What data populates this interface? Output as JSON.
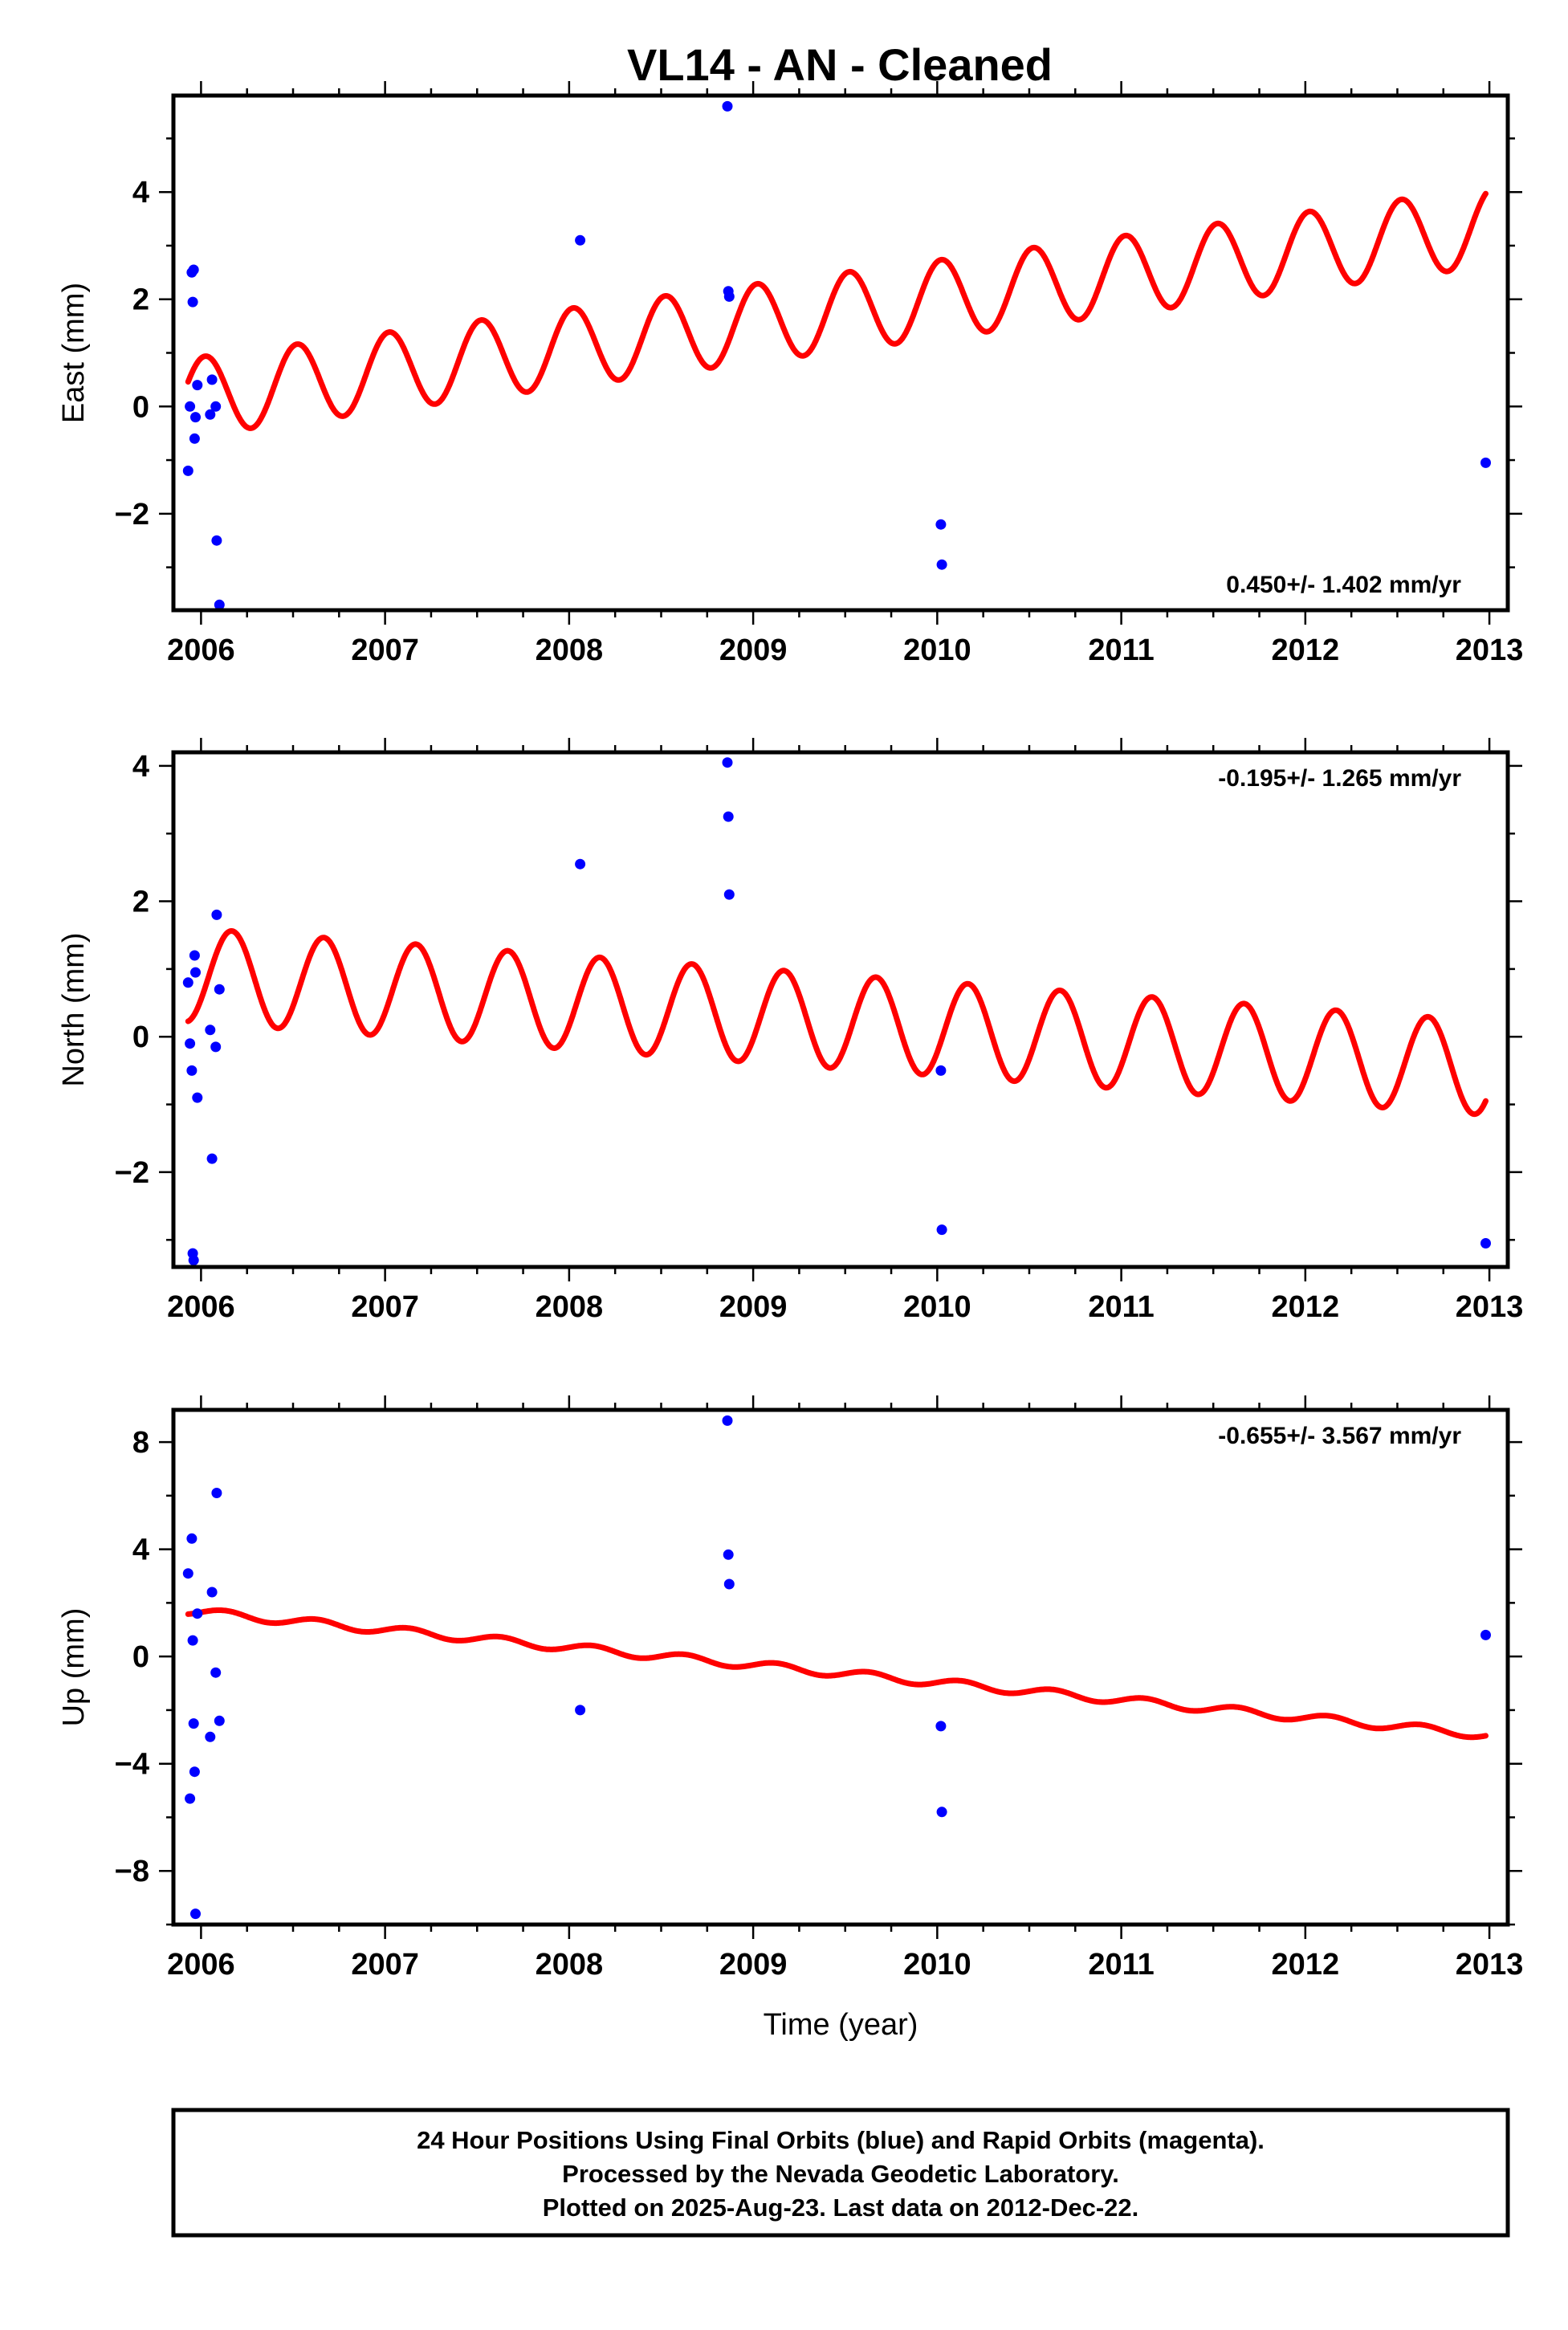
{
  "chart_data": {
    "title": "VL14  - AN - Cleaned",
    "colors": {
      "final_orbits": "#0000ff",
      "model": "#ff0000"
    },
    "panels": [
      {
        "type": "scatter",
        "ylabel": "East (mm)",
        "xlabel": "",
        "xlim": [
          2005.85,
          2013.1
        ],
        "ylim": [
          -3.8,
          5.8
        ],
        "xticks": [
          "2006",
          "2007",
          "2008",
          "2009",
          "2010",
          "2011",
          "2012",
          "2013"
        ],
        "yticks": [
          -2,
          0,
          2,
          4
        ],
        "rate": "0.450+/- 1.402 mm/yr",
        "rate_position": "bottom-right",
        "model": {
          "offset": 0.2,
          "slope": 0.45,
          "annual_cos": 0.0,
          "annual_sin": 0.0,
          "semiannual_cos": 0.7,
          "semiannual_sin": 0.2,
          "t0": 2006.0,
          "t_start": 2005.93,
          "t_end": 2012.98
        },
        "points": [
          [
            2005.93,
            -1.2
          ],
          [
            2005.94,
            0.0
          ],
          [
            2005.95,
            2.5
          ],
          [
            2005.955,
            1.95
          ],
          [
            2005.96,
            2.55
          ],
          [
            2005.965,
            -0.6
          ],
          [
            2005.97,
            -0.2
          ],
          [
            2005.98,
            0.4
          ],
          [
            2006.05,
            -0.15
          ],
          [
            2006.06,
            0.5
          ],
          [
            2006.08,
            0.0
          ],
          [
            2006.085,
            -2.5
          ],
          [
            2006.1,
            -3.7
          ],
          [
            2008.06,
            3.1
          ],
          [
            2008.86,
            5.6
          ],
          [
            2008.865,
            2.15
          ],
          [
            2008.87,
            2.05
          ],
          [
            2010.02,
            -2.2
          ],
          [
            2010.025,
            -2.95
          ],
          [
            2012.98,
            -1.05
          ]
        ]
      },
      {
        "type": "scatter",
        "ylabel": "North (mm)",
        "xlabel": "",
        "xlim": [
          2005.85,
          2013.1
        ],
        "ylim": [
          -3.4,
          4.2
        ],
        "xticks": [
          "2006",
          "2007",
          "2008",
          "2009",
          "2010",
          "2011",
          "2012",
          "2013"
        ],
        "yticks": [
          -2,
          0,
          2,
          4
        ],
        "rate": "-0.195+/- 1.265 mm/yr",
        "rate_position": "top-right",
        "model": {
          "offset": 0.9,
          "slope": -0.195,
          "annual_cos": 0.0,
          "annual_sin": 0.0,
          "semiannual_cos": -0.35,
          "semiannual_sin": 0.6,
          "t0": 2006.0,
          "t_start": 2005.93,
          "t_end": 2012.98
        },
        "points": [
          [
            2005.93,
            0.8
          ],
          [
            2005.94,
            -0.1
          ],
          [
            2005.95,
            -0.5
          ],
          [
            2005.955,
            -3.2
          ],
          [
            2005.96,
            -3.3
          ],
          [
            2005.965,
            1.2
          ],
          [
            2005.97,
            0.95
          ],
          [
            2005.98,
            -0.9
          ],
          [
            2006.05,
            0.1
          ],
          [
            2006.06,
            -1.8
          ],
          [
            2006.08,
            -0.15
          ],
          [
            2006.085,
            1.8
          ],
          [
            2006.1,
            0.7
          ],
          [
            2008.06,
            2.55
          ],
          [
            2008.86,
            4.05
          ],
          [
            2008.865,
            3.25
          ],
          [
            2008.87,
            2.1
          ],
          [
            2010.02,
            -0.5
          ],
          [
            2010.025,
            -2.85
          ],
          [
            2012.98,
            -3.05
          ]
        ]
      },
      {
        "type": "scatter",
        "ylabel": "Up (mm)",
        "xlabel": "Time (year)",
        "xlim": [
          2005.85,
          2013.1
        ],
        "ylim": [
          -10.0,
          9.2
        ],
        "xticks": [
          "2006",
          "2007",
          "2008",
          "2009",
          "2010",
          "2011",
          "2012",
          "2013"
        ],
        "yticks": [
          -8,
          -4,
          0,
          4,
          8
        ],
        "rate": "-0.655+/- 3.567 mm/yr",
        "rate_position": "top-right",
        "model": {
          "offset": 1.65,
          "slope": -0.655,
          "annual_cos": 0.0,
          "annual_sin": 0.0,
          "semiannual_cos": 0.0,
          "semiannual_sin": 0.15,
          "t0": 2006.0,
          "t_start": 2005.93,
          "t_end": 2012.98
        },
        "points": [
          [
            2005.93,
            3.1
          ],
          [
            2005.94,
            -5.3
          ],
          [
            2005.95,
            4.4
          ],
          [
            2005.955,
            0.6
          ],
          [
            2005.96,
            -2.5
          ],
          [
            2005.965,
            -4.3
          ],
          [
            2005.97,
            -9.6
          ],
          [
            2005.98,
            1.6
          ],
          [
            2006.05,
            -3.0
          ],
          [
            2006.06,
            2.4
          ],
          [
            2006.08,
            -0.6
          ],
          [
            2006.085,
            6.1
          ],
          [
            2006.1,
            -2.4
          ],
          [
            2008.06,
            -2.0
          ],
          [
            2008.86,
            8.8
          ],
          [
            2008.865,
            3.8
          ],
          [
            2008.87,
            2.7
          ],
          [
            2010.02,
            -2.6
          ],
          [
            2010.025,
            -5.8
          ],
          [
            2012.98,
            0.8
          ]
        ]
      }
    ]
  },
  "footer": {
    "line1": "24 Hour Positions Using Final Orbits (blue) and Rapid Orbits (magenta).",
    "line2": "Processed by the Nevada Geodetic Laboratory.",
    "line3": "Plotted on 2025-Aug-23. Last data on 2012-Dec-22."
  }
}
